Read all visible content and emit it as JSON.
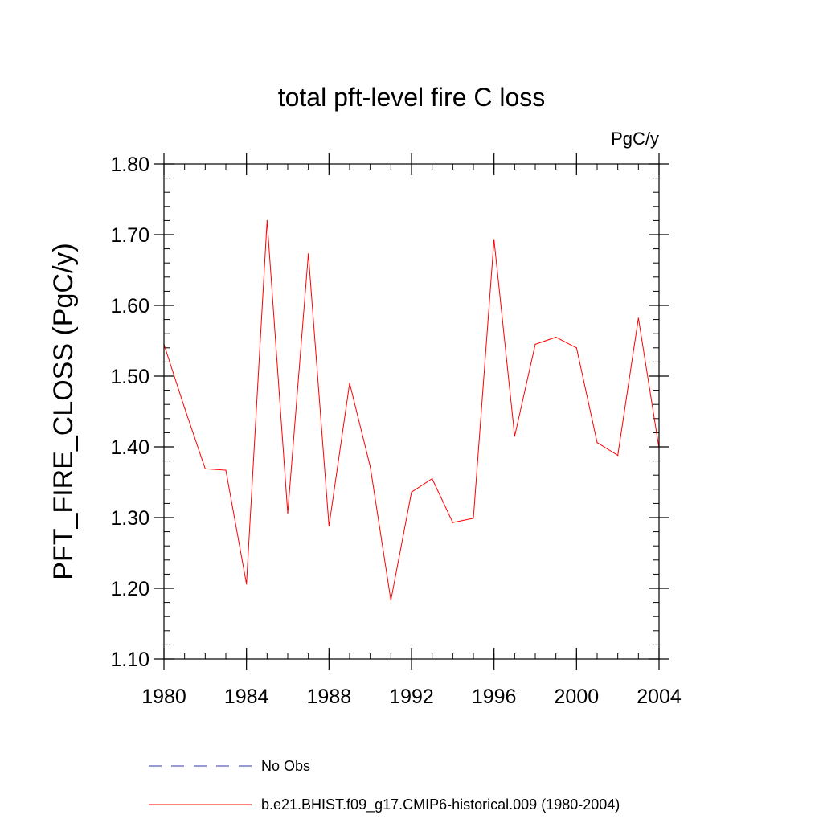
{
  "chart_data": {
    "type": "line",
    "title": "total pft-level fire C loss",
    "units_label": "PgC/y",
    "ylabel": "PFT_FIRE_CLOSS  (PgC/y)",
    "xlabel": "",
    "xlim": [
      1980,
      2004
    ],
    "ylim": [
      1.1,
      1.8
    ],
    "x_ticks": [
      1980,
      1984,
      1988,
      1992,
      1996,
      2000,
      2004
    ],
    "x_minor_step": 1,
    "y_ticks": [
      1.1,
      1.2,
      1.3,
      1.4,
      1.5,
      1.6,
      1.7,
      1.8
    ],
    "y_tick_labels": [
      "1.10",
      "1.20",
      "1.30",
      "1.40",
      "1.50",
      "1.60",
      "1.70",
      "1.80"
    ],
    "y_minor_step": 0.02,
    "grid": false,
    "series": [
      {
        "name": "b.e21.BHIST.f09_g17.CMIP6-historical.009 (1980-2004)",
        "color": "#ff0000",
        "style": "solid",
        "x": [
          1980,
          1981,
          1982,
          1983,
          1984,
          1985,
          1986,
          1987,
          1988,
          1989,
          1990,
          1991,
          1992,
          1993,
          1994,
          1995,
          1996,
          1997,
          1998,
          1999,
          2000,
          2001,
          2002,
          2003,
          2004
        ],
        "values": [
          1.545,
          1.455,
          1.369,
          1.367,
          1.206,
          1.72,
          1.306,
          1.673,
          1.288,
          1.49,
          1.372,
          1.183,
          1.336,
          1.355,
          1.293,
          1.299,
          1.693,
          1.415,
          1.545,
          1.555,
          1.54,
          1.406,
          1.388,
          1.582,
          1.398
        ]
      }
    ],
    "legend": {
      "placement": "bottom",
      "entries": [
        {
          "label": "No Obs",
          "color": "#3333aa",
          "style": "dashed"
        },
        {
          "label": "b.e21.BHIST.f09_g17.CMIP6-historical.009 (1980-2004)",
          "color": "#ff0000",
          "style": "solid"
        }
      ]
    }
  }
}
